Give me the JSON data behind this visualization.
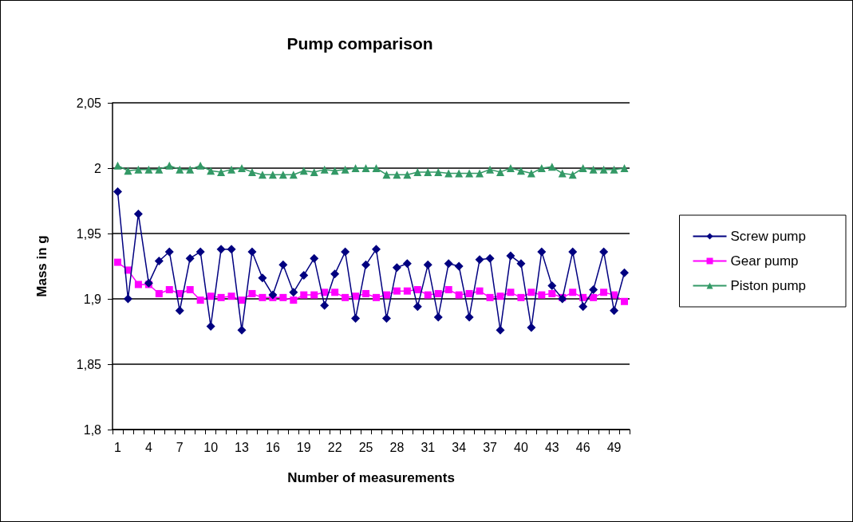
{
  "chart_data": {
    "type": "line",
    "title": "Pump comparison",
    "xlabel": "Number of measurements",
    "ylabel": "Mass in g",
    "categories": [
      "1",
      null,
      null,
      "4",
      null,
      null,
      "7",
      null,
      null,
      "10",
      null,
      null,
      "13",
      null,
      null,
      "16",
      null,
      null,
      "19",
      null,
      null,
      "22",
      null,
      null,
      "25",
      null,
      null,
      "28",
      null,
      null,
      "31",
      null,
      null,
      "34",
      null,
      null,
      "37",
      null,
      null,
      "40",
      null,
      null,
      "43",
      null,
      null,
      "46",
      null,
      null,
      "49",
      null
    ],
    "series": [
      {
        "name": "Screw pump",
        "color": "#000080",
        "marker": "diamond",
        "values": [
          1.982,
          1.9,
          1.965,
          1.912,
          1.929,
          1.936,
          1.891,
          1.931,
          1.936,
          1.879,
          1.938,
          1.938,
          1.876,
          1.936,
          1.916,
          1.903,
          1.926,
          1.905,
          1.918,
          1.931,
          1.895,
          1.919,
          1.936,
          1.885,
          1.926,
          1.938,
          1.885,
          1.924,
          1.927,
          1.894,
          1.926,
          1.886,
          1.927,
          1.925,
          1.886,
          1.93,
          1.931,
          1.876,
          1.933,
          1.927,
          1.878,
          1.936,
          1.91,
          1.9,
          1.936,
          1.894,
          1.907,
          1.936,
          1.891,
          1.92
        ]
      },
      {
        "name": "Gear pump",
        "color": "#ff00ff",
        "marker": "square",
        "values": [
          1.928,
          1.922,
          1.911,
          1.911,
          1.904,
          1.907,
          1.904,
          1.907,
          1.899,
          1.902,
          1.901,
          1.902,
          1.899,
          1.904,
          1.901,
          1.901,
          1.901,
          1.899,
          1.903,
          1.903,
          1.905,
          1.905,
          1.901,
          1.902,
          1.904,
          1.901,
          1.903,
          1.906,
          1.906,
          1.907,
          1.903,
          1.904,
          1.907,
          1.903,
          1.904,
          1.906,
          1.901,
          1.902,
          1.905,
          1.901,
          1.905,
          1.903,
          1.904,
          1.901,
          1.905,
          1.901,
          1.901,
          1.905,
          1.903,
          1.898
        ]
      },
      {
        "name": "Piston pump",
        "color": "#339966",
        "marker": "triangle",
        "values": [
          2.002,
          1.998,
          1.999,
          1.999,
          1.999,
          2.002,
          1.999,
          1.999,
          2.002,
          1.998,
          1.997,
          1.999,
          2.0,
          1.997,
          1.995,
          1.995,
          1.995,
          1.995,
          1.998,
          1.997,
          1.999,
          1.998,
          1.999,
          2.0,
          2.0,
          2.0,
          1.995,
          1.995,
          1.995,
          1.997,
          1.997,
          1.997,
          1.996,
          1.996,
          1.996,
          1.996,
          1.999,
          1.997,
          2.0,
          1.998,
          1.996,
          2.0,
          2.001,
          1.996,
          1.995,
          2.0,
          1.999,
          1.999,
          1.999,
          2.0
        ]
      }
    ],
    "ylim": [
      1.8,
      2.05
    ],
    "yticks": [
      {
        "value": 1.8,
        "label": "1,8"
      },
      {
        "value": 1.85,
        "label": "1,85"
      },
      {
        "value": 1.9,
        "label": "1,9"
      },
      {
        "value": 1.95,
        "label": "1,95"
      },
      {
        "value": 2,
        "label": "2"
      },
      {
        "value": 2.05,
        "label": "2,05"
      }
    ],
    "grid": "y",
    "legend": "right",
    "line_style": "solid"
  }
}
